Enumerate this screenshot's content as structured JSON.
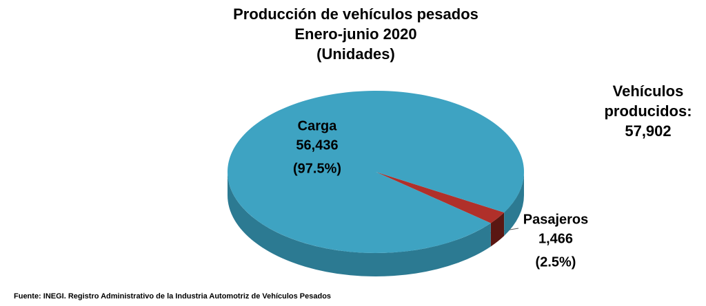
{
  "chart_data": {
    "type": "pie",
    "title": [
      "Producción de vehículos pesados",
      "Enero-junio 2020",
      "(Unidades)"
    ],
    "categories": [
      "Pasajeros",
      "Carga"
    ],
    "values": [
      1466,
      56436
    ],
    "value_labels": [
      "1,466",
      "56,436"
    ],
    "percent_labels": [
      "(2.5%)",
      "(97.5%)"
    ],
    "colors": [
      "#b0302a",
      "#3ea3c2"
    ],
    "side_colors": [
      "#5a1712",
      "#2c7a92"
    ],
    "annotation": [
      "Vehículos",
      "producidos:",
      "57,902"
    ],
    "source": "Fuente: INEGI. Registro Administrativo de la Industria Automotriz de Vehículos Pesados"
  }
}
